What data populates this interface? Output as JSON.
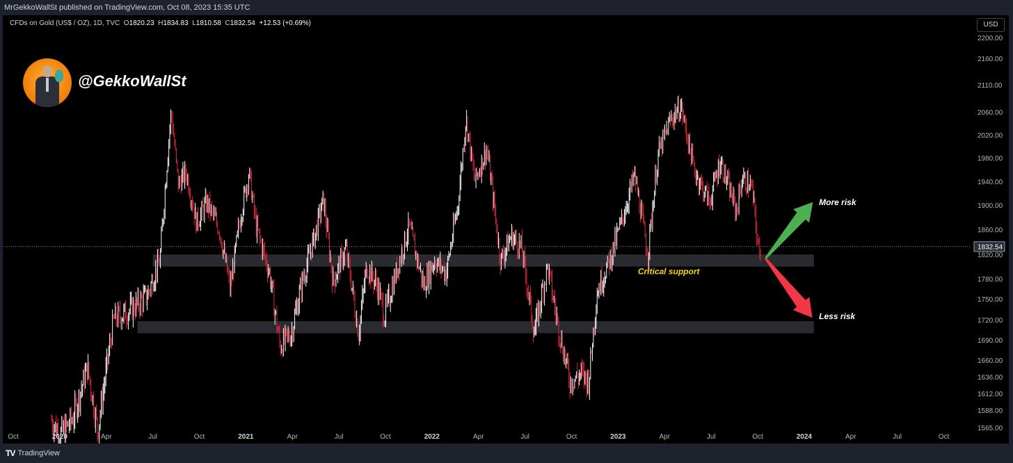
{
  "header": {
    "published_text": "MrGekkoWallSt published on TradingView.com, Oct 08, 2023 15:35 UTC"
  },
  "legend": {
    "symbol": "CFDs on Gold (US$ / OZ), 1D, TVC",
    "o_label": "O",
    "o_value": "1820.23",
    "h_label": "H",
    "h_value": "1834.83",
    "l_label": "L",
    "l_value": "1810.58",
    "c_label": "C",
    "c_value": "1832.54",
    "change": "+12.53 (+0.69%)"
  },
  "currency_button": "USD",
  "watermark_handle": "@GekkoWallSt",
  "footer": {
    "brand": "TradingView"
  },
  "colors": {
    "background": "#000000",
    "up_candle": "#ffffff",
    "down_candle": "#e0273a",
    "zone": "#2a2b30",
    "green_arrow": "#4caf50",
    "red_arrow": "#f23645",
    "support_text": "#f5d90a",
    "axis_text": "#b2b5be"
  },
  "chart_data": {
    "type": "candlestick",
    "title": "CFDs on Gold (US$ / OZ), 1D, TVC",
    "x_tick_labels": [
      "Oct",
      "2020",
      "Apr",
      "Jul",
      "Oct",
      "2021",
      "Apr",
      "Jul",
      "Oct",
      "2022",
      "Apr",
      "Jul",
      "Oct",
      "2023",
      "Apr",
      "Jul",
      "Oct",
      "2024",
      "Apr",
      "Jul",
      "Oct"
    ],
    "y_tick_labels": [
      1565,
      1588,
      1612,
      1636,
      1660,
      1690,
      1720,
      1750,
      1780,
      1820,
      1860,
      1900,
      1940,
      1980,
      2020,
      2060,
      2110,
      2160,
      2200
    ],
    "y_tick_text": [
      "1565.00",
      "1588.00",
      "1612.00",
      "1636.00",
      "1660.00",
      "1690.00",
      "1720.00",
      "1750.00",
      "1780.00",
      "1820.00",
      "1860.00",
      "1900.00",
      "1940.00",
      "1980.00",
      "2020.00",
      "2060.00",
      "2110.00",
      "2160.00",
      "2200.00"
    ],
    "last_price": 1832.54,
    "last_price_label": "1832.54",
    "price_path": [
      {
        "date": "2019-12-15",
        "price": 1575
      },
      {
        "date": "2020-01-01",
        "price": 1555
      },
      {
        "date": "2020-01-25",
        "price": 1575
      },
      {
        "date": "2020-02-24",
        "price": 1650
      },
      {
        "date": "2020-03-15",
        "price": 1560
      },
      {
        "date": "2020-04-15",
        "price": 1720
      },
      {
        "date": "2020-05-20",
        "price": 1735
      },
      {
        "date": "2020-06-20",
        "price": 1755
      },
      {
        "date": "2020-07-15",
        "price": 1810
      },
      {
        "date": "2020-08-06",
        "price": 2063
      },
      {
        "date": "2020-08-20",
        "price": 1935
      },
      {
        "date": "2020-09-05",
        "price": 1955
      },
      {
        "date": "2020-09-25",
        "price": 1870
      },
      {
        "date": "2020-10-15",
        "price": 1905
      },
      {
        "date": "2020-11-09",
        "price": 1860
      },
      {
        "date": "2020-11-30",
        "price": 1765
      },
      {
        "date": "2020-12-20",
        "price": 1880
      },
      {
        "date": "2021-01-06",
        "price": 1955
      },
      {
        "date": "2021-01-20",
        "price": 1865
      },
      {
        "date": "2021-02-15",
        "price": 1790
      },
      {
        "date": "2021-03-08",
        "price": 1680
      },
      {
        "date": "2021-03-30",
        "price": 1700
      },
      {
        "date": "2021-04-20",
        "price": 1775
      },
      {
        "date": "2021-05-15",
        "price": 1850
      },
      {
        "date": "2021-06-01",
        "price": 1910
      },
      {
        "date": "2021-06-20",
        "price": 1775
      },
      {
        "date": "2021-07-15",
        "price": 1830
      },
      {
        "date": "2021-08-09",
        "price": 1700
      },
      {
        "date": "2021-08-25",
        "price": 1800
      },
      {
        "date": "2021-09-15",
        "price": 1770
      },
      {
        "date": "2021-09-29",
        "price": 1725
      },
      {
        "date": "2021-10-20",
        "price": 1785
      },
      {
        "date": "2021-11-16",
        "price": 1865
      },
      {
        "date": "2021-12-15",
        "price": 1770
      },
      {
        "date": "2022-01-05",
        "price": 1810
      },
      {
        "date": "2022-01-28",
        "price": 1790
      },
      {
        "date": "2022-02-20",
        "price": 1900
      },
      {
        "date": "2022-03-08",
        "price": 2050
      },
      {
        "date": "2022-03-25",
        "price": 1940
      },
      {
        "date": "2022-04-18",
        "price": 1995
      },
      {
        "date": "2022-05-15",
        "price": 1810
      },
      {
        "date": "2022-06-05",
        "price": 1850
      },
      {
        "date": "2022-06-25",
        "price": 1830
      },
      {
        "date": "2022-07-20",
        "price": 1700
      },
      {
        "date": "2022-08-15",
        "price": 1800
      },
      {
        "date": "2022-09-05",
        "price": 1710
      },
      {
        "date": "2022-09-28",
        "price": 1630
      },
      {
        "date": "2022-10-20",
        "price": 1640
      },
      {
        "date": "2022-11-04",
        "price": 1630
      },
      {
        "date": "2022-11-20",
        "price": 1760
      },
      {
        "date": "2022-12-15",
        "price": 1810
      },
      {
        "date": "2023-01-10",
        "price": 1880
      },
      {
        "date": "2023-02-02",
        "price": 1950
      },
      {
        "date": "2023-02-28",
        "price": 1820
      },
      {
        "date": "2023-03-20",
        "price": 1985
      },
      {
        "date": "2023-04-13",
        "price": 2045
      },
      {
        "date": "2023-05-04",
        "price": 2070
      },
      {
        "date": "2023-05-30",
        "price": 1960
      },
      {
        "date": "2023-06-29",
        "price": 1905
      },
      {
        "date": "2023-07-20",
        "price": 1975
      },
      {
        "date": "2023-08-21",
        "price": 1890
      },
      {
        "date": "2023-09-01",
        "price": 1945
      },
      {
        "date": "2023-09-20",
        "price": 1930
      },
      {
        "date": "2023-10-05",
        "price": 1815
      },
      {
        "date": "2023-10-08",
        "price": 1832.54
      }
    ],
    "zones": [
      {
        "start": "2020-07-01",
        "end": "2024-01-20",
        "low": 1800,
        "high": 1820
      },
      {
        "start": "2020-06-01",
        "end": "2024-01-20",
        "low": 1700,
        "high": 1718
      }
    ],
    "annotations": {
      "support_label": "Critical support",
      "up_label": "More risk",
      "down_label": "Less risk"
    }
  }
}
